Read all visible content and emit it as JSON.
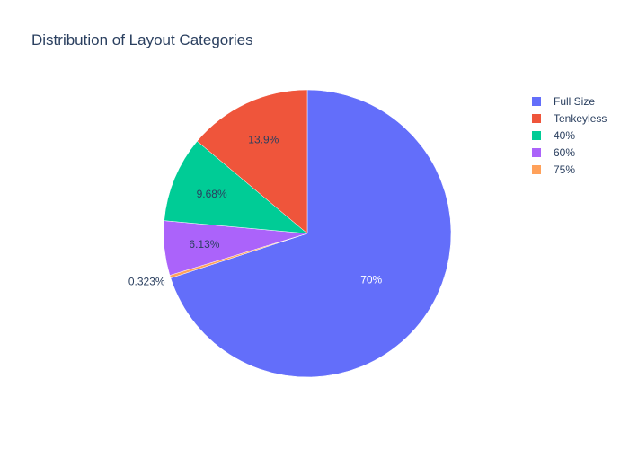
{
  "chart_data": {
    "type": "pie",
    "title": "Distribution of Layout Categories",
    "slices": [
      {
        "label": "Full Size",
        "value": 70,
        "display": "70%",
        "color": "#636efa",
        "label_color": "#ffffff"
      },
      {
        "label": "75%",
        "value": 0.323,
        "display": "0.323%",
        "color": "#ffa15a",
        "label_color": "#2a3f5f"
      },
      {
        "label": "60%",
        "value": 6.13,
        "display": "6.13%",
        "color": "#ab63fa",
        "label_color": "#2a3f5f"
      },
      {
        "label": "40%",
        "value": 9.68,
        "display": "9.68%",
        "color": "#00cc96",
        "label_color": "#2a3f5f"
      },
      {
        "label": "Tenkeyless",
        "value": 13.9,
        "display": "13.9%",
        "color": "#ef553b",
        "label_color": "#2a3f5f"
      }
    ],
    "legend": {
      "position": "top-right",
      "entries": [
        {
          "label": "Full Size",
          "color": "#636efa"
        },
        {
          "label": "Tenkeyless",
          "color": "#ef553b"
        },
        {
          "label": "40%",
          "color": "#00cc96"
        },
        {
          "label": "60%",
          "color": "#ab63fa"
        },
        {
          "label": "75%",
          "color": "#ffa15a"
        }
      ]
    }
  }
}
